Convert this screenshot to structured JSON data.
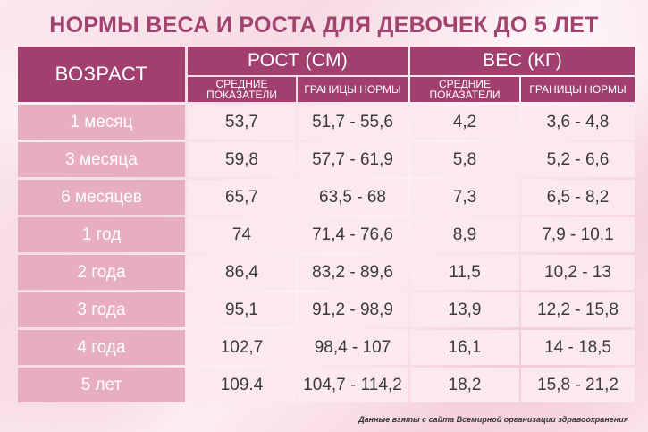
{
  "title": "НОРМЫ ВЕСА И РОСТА ДЛЯ ДЕВОЧЕК ДО 5 ЛЕТ",
  "header": {
    "age": "ВОЗРАСТ",
    "height": "РОСТ (СМ)",
    "weight": "ВЕС (КГ)",
    "height_avg": "СРЕДНИЕ ПОКАЗАТЕЛИ",
    "height_range": "ГРАНИЦЫ НОРМЫ",
    "weight_avg": "СРЕДНИЕ ПОКАЗАТЕЛИ",
    "weight_range": "ГРАНИЦЫ НОРМЫ"
  },
  "rows": [
    {
      "age": "1 месяц",
      "height_avg": "53,7",
      "height_range": "51,7 - 55,6",
      "weight_avg": "4,2",
      "weight_range": "3,6 - 4,8"
    },
    {
      "age": "3 месяца",
      "height_avg": "59,8",
      "height_range": "57,7 - 61,9",
      "weight_avg": "5,8",
      "weight_range": "5,2 - 6,6"
    },
    {
      "age": "6 месяцев",
      "height_avg": "65,7",
      "height_range": "63,5 - 68",
      "weight_avg": "7,3",
      "weight_range": "6,5 - 8,2"
    },
    {
      "age": "1 год",
      "height_avg": "74",
      "height_range": "71,4 - 76,6",
      "weight_avg": "8,9",
      "weight_range": "7,9 - 10,1"
    },
    {
      "age": "2 года",
      "height_avg": "86,4",
      "height_range": "83,2 - 89,6",
      "weight_avg": "11,5",
      "weight_range": "10,2 - 13"
    },
    {
      "age": "3 года",
      "height_avg": "95,1",
      "height_range": "91,2 - 98,9",
      "weight_avg": "13,9",
      "weight_range": "12,2 - 15,8"
    },
    {
      "age": "4 года",
      "height_avg": "102,7",
      "height_range": "98,4 - 107",
      "weight_avg": "16,1",
      "weight_range": "14 - 18,5"
    },
    {
      "age": "5 лет",
      "height_avg": "109.4",
      "height_range": "104,7 - 114,2",
      "weight_avg": "18,2",
      "weight_range": "15,8 - 21,2"
    }
  ],
  "source": "Данные взяты с сайта Всемирной организации здравоохранения",
  "colors": {
    "header": "#a13f6e",
    "age_cell": "#e7aec3",
    "value_cell": "#fbe9ef",
    "title": "#a2426f"
  }
}
